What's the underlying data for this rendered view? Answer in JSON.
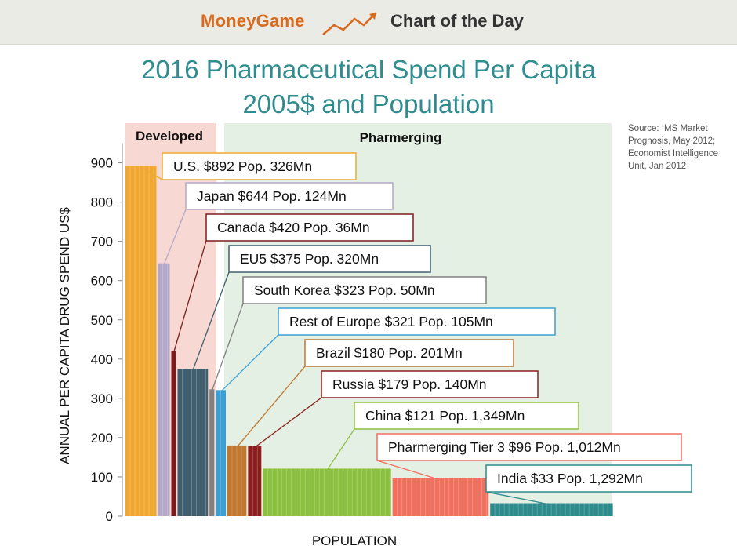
{
  "header": {
    "brand": "MoneyGame",
    "subtitle": "Chart of the Day"
  },
  "chart_data": {
    "type": "bar",
    "title": "2016 Pharmaceutical Spend Per Capita",
    "subtitle": "2005$ and Population",
    "source": "Source: IMS Market Prognosis, May 2012; Economist Intelligence Unit, Jan 2012",
    "xlabel": "POPULATION",
    "ylabel": "ANNUAL PER CAPITA DRUG SPEND US$",
    "ylim": [
      0,
      950
    ],
    "yticks": [
      0,
      100,
      200,
      300,
      400,
      500,
      600,
      700,
      800,
      900
    ],
    "grid": false,
    "regions": [
      {
        "label": "Developed",
        "color": "#f8d8d2"
      },
      {
        "label": "Pharmerging",
        "color": "#e4f0e4"
      }
    ],
    "series": [
      {
        "country": "U.S.",
        "spend": 892,
        "population_mn": 326,
        "label": "U.S. $892  Pop. 326Mn",
        "color": "#f0a830",
        "region": "Developed"
      },
      {
        "country": "Japan",
        "spend": 644,
        "population_mn": 124,
        "label": "Japan $644  Pop. 124Mn",
        "color": "#b3a8c8",
        "region": "Developed"
      },
      {
        "country": "Canada",
        "spend": 420,
        "population_mn": 36,
        "label": "Canada $420  Pop. 36Mn",
        "color": "#7a1c1c",
        "region": "Developed"
      },
      {
        "country": "EU5",
        "spend": 375,
        "population_mn": 320,
        "label": "EU5 $375  Pop. 320Mn",
        "color": "#3f5f6e",
        "region": "Developed"
      },
      {
        "country": "South Korea",
        "spend": 323,
        "population_mn": 50,
        "label": "South Korea $323  Pop. 50Mn",
        "color": "#808080",
        "region": "Developed"
      },
      {
        "country": "Rest of Europe",
        "spend": 321,
        "population_mn": 105,
        "label": "Rest of Europe  $321  Pop. 105Mn",
        "color": "#3b9fd2",
        "region": "Developed"
      },
      {
        "country": "Brazil",
        "spend": 180,
        "population_mn": 201,
        "label": "Brazil  $180  Pop. 201Mn",
        "color": "#c07830",
        "region": "Pharmerging"
      },
      {
        "country": "Russia",
        "spend": 179,
        "population_mn": 140,
        "label": "Russia  $179  Pop. 140Mn",
        "color": "#8a1e1e",
        "region": "Pharmerging"
      },
      {
        "country": "China",
        "spend": 121,
        "population_mn": 1349,
        "label": "China  $121  Pop. 1,349Mn",
        "color": "#8cc040",
        "region": "Pharmerging"
      },
      {
        "country": "Pharmerging Tier 3",
        "spend": 96,
        "population_mn": 1012,
        "label": "Pharmerging Tier 3 $96 Pop. 1,012Mn",
        "color": "#f07060",
        "region": "Pharmerging"
      },
      {
        "country": "India",
        "spend": 33,
        "population_mn": 1292,
        "label": "India $33  Pop. 1,292Mn",
        "color": "#2e8a8c",
        "region": "Pharmerging"
      }
    ]
  }
}
